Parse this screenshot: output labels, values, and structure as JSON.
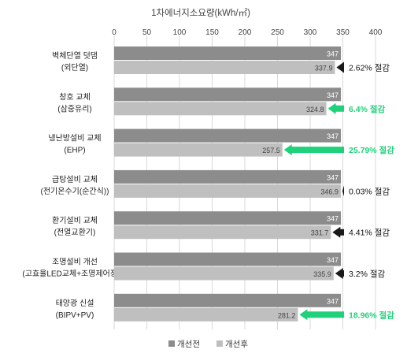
{
  "chart_data": {
    "type": "bar",
    "orientation": "horizontal",
    "title": "1차에너지소요량(kWh/㎡)",
    "xlim": [
      0,
      400
    ],
    "xticks": [
      "0",
      "50",
      "100",
      "150",
      "200",
      "250",
      "300",
      "350",
      "400"
    ],
    "grid": true,
    "legend_placement": "bottom",
    "categories": [
      [
        "벽체단열 덧댐",
        "(외단열)"
      ],
      [
        "창호 교체",
        "(삼중유리)"
      ],
      [
        "냉난방설비 교체",
        "(EHP)"
      ],
      [
        "급탕설비 교체",
        "(전기온수기(순간식))"
      ],
      [
        "환기설비 교체",
        "(전열교환기)"
      ],
      [
        "조명설비 개선",
        "(고효율LED교체+조명제어장치)"
      ],
      [
        "태양광 신설",
        "(BIPV+PV)"
      ]
    ],
    "series": [
      {
        "name": "개선전",
        "values": [
          347,
          347,
          347,
          347,
          347,
          347,
          347
        ],
        "labels": [
          "347",
          "347",
          "347",
          "347",
          "347",
          "347",
          "347"
        ]
      },
      {
        "name": "개선후",
        "values": [
          337.9,
          324.8,
          257.5,
          346.9,
          331.7,
          335.9,
          281.2
        ],
        "labels": [
          "337.9",
          "324.8",
          "257.5",
          "346.9",
          "331.7",
          "335.9",
          "281.2"
        ]
      }
    ],
    "annotations": [
      {
        "text": "2.62% 절감",
        "highlight": false
      },
      {
        "text": "6.4% 절감",
        "highlight": true
      },
      {
        "text": "25.79% 절감",
        "highlight": true
      },
      {
        "text": "0.03% 절감",
        "highlight": false
      },
      {
        "text": "4.41% 절감",
        "highlight": false
      },
      {
        "text": "3.2% 절감",
        "highlight": false
      },
      {
        "text": "18.96% 절감",
        "highlight": true
      }
    ],
    "colors": {
      "before": "#8c8c8c",
      "after": "#bfbfbf",
      "highlight": "#1fd17a",
      "normal": "#1a1a1a",
      "grid": "#d9d9d9"
    }
  }
}
